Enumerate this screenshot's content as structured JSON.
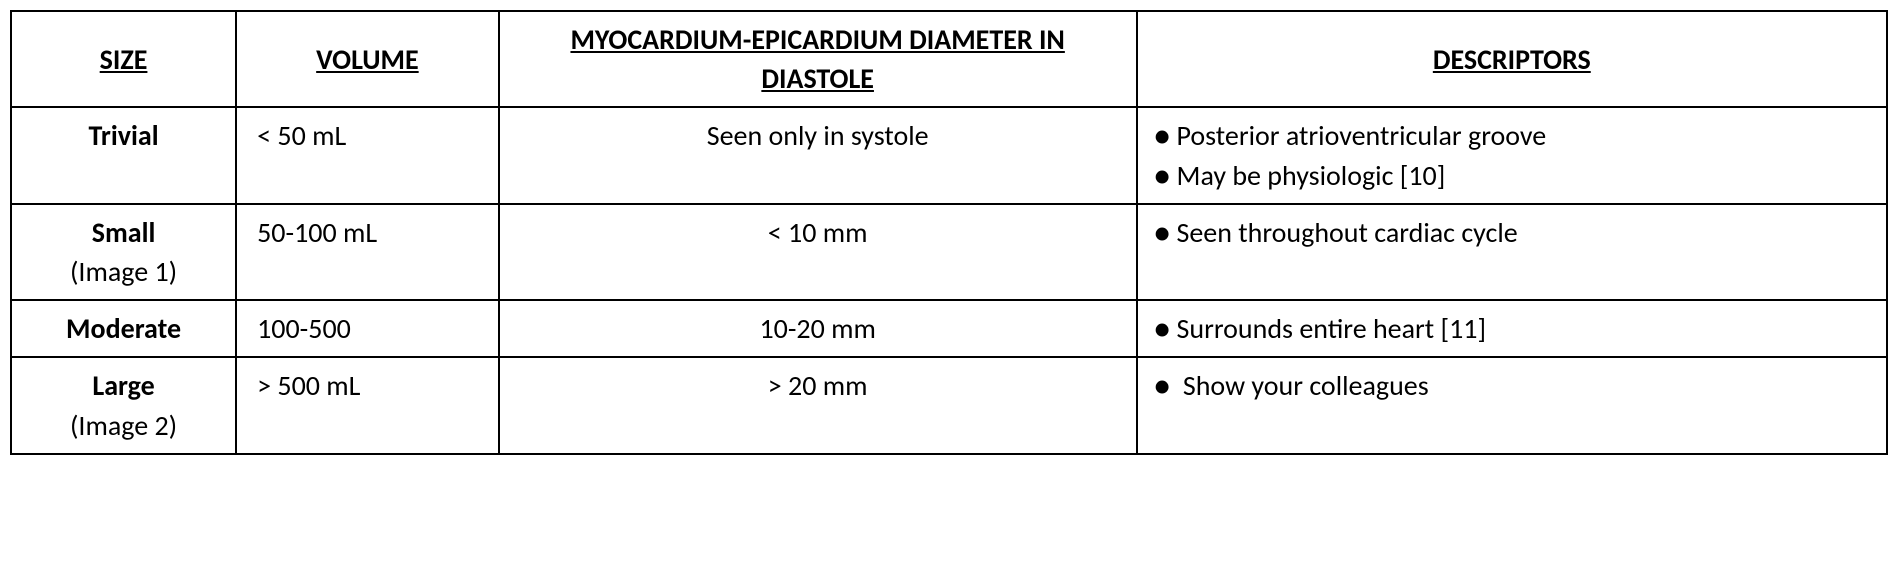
{
  "table": {
    "headers": {
      "size": "SIZE",
      "volume": "VOLUME",
      "diameter": "MYOCARDIUM-EPICARDIUM DIAMETER IN DIASTOLE",
      "descriptors": "DESCRIPTORS"
    },
    "rows": [
      {
        "size_label": "Trivial",
        "image_ref": "",
        "volume": "< 50 mL",
        "diameter": "Seen only in systole",
        "descriptors": [
          "Posterior atrioventricular groove",
          "May be physiologic [10]"
        ]
      },
      {
        "size_label": "Small",
        "image_ref": "(Image 1)",
        "volume": "50-100 mL",
        "diameter": "< 10 mm",
        "descriptors": [
          "Seen throughout cardiac cycle"
        ]
      },
      {
        "size_label": "Moderate",
        "image_ref": "",
        "volume": "100-500",
        "diameter": "10-20 mm",
        "descriptors": [
          "Surrounds entire heart [11]"
        ]
      },
      {
        "size_label": "Large",
        "image_ref": "(Image 2)",
        "volume": "> 500 mL",
        "diameter": "> 20 mm",
        "descriptors": [
          " Show your colleagues"
        ]
      }
    ],
    "styling": {
      "border_color": "#000000",
      "border_width": 2,
      "background_color": "#ffffff",
      "font_family": "Calibri",
      "header_fontsize": 28,
      "cell_fontsize": 28,
      "header_weight": "bold",
      "header_decoration": "underline",
      "col_widths_pct": [
        12,
        14,
        34,
        40
      ],
      "bullet_char": "●"
    }
  }
}
